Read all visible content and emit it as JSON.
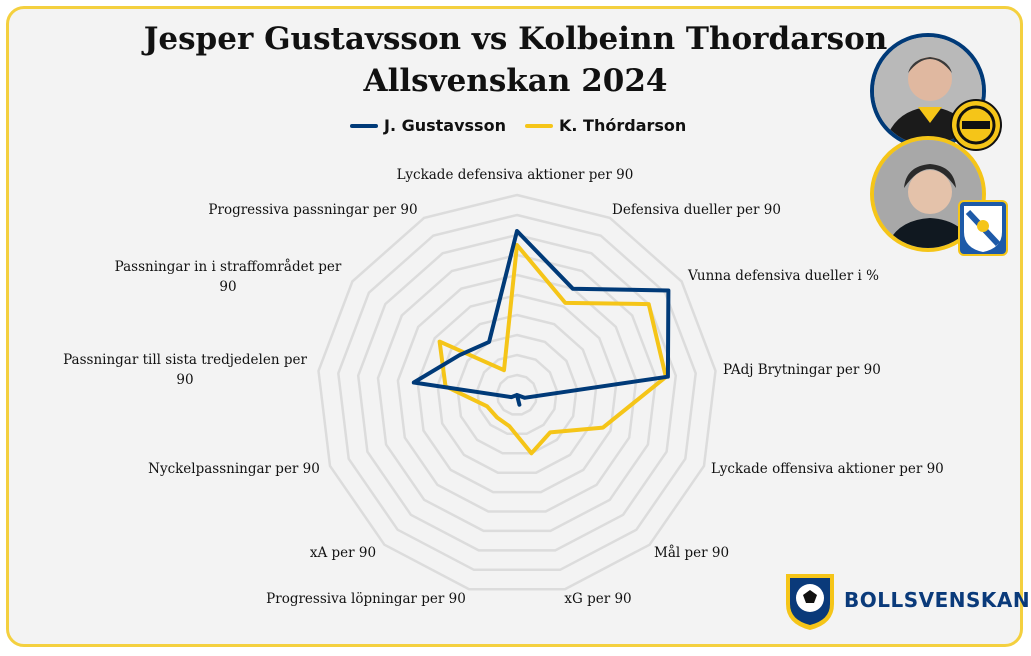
{
  "title_line1": "Jesper Gustavsson vs Kolbeinn Thordarson",
  "title_line2": "Allsvenskan 2024",
  "brand": "BOLLSVENSKAN.SE",
  "colors": {
    "gustavsson": "#003a78",
    "thordarson": "#f5c518",
    "grid": "#dcdcdc",
    "frame": "#f4d03f"
  },
  "chart_data": {
    "type": "radar",
    "title": "Jesper Gustavsson vs Kolbeinn Thordarson Allsvenskan 2024",
    "max": 10,
    "grid_rings": 10,
    "legend_position": "top-center",
    "categories": [
      "Lyckade defensiva aktioner per 90",
      "Defensiva dueller per 90",
      "Vunna defensiva dueller i %",
      "PAdj Brytningar per 90",
      "Lyckade offensiva aktioner per 90",
      "Mål per 90",
      "xG per 90",
      "Progressiva löpningar per 90",
      "xA per 90",
      "Nyckelpassningar per 90",
      "Passningar till sista tredjedelen per 90",
      "Passningar in i straffområdet per 90",
      "Progressiva passningar per 90"
    ],
    "series": [
      {
        "name": "J. Gustavsson",
        "values": [
          8.2,
          6.0,
          9.2,
          7.6,
          0.4,
          0.0,
          0.5,
          0.0,
          0.0,
          0.3,
          5.2,
          3.5,
          3.0
        ]
      },
      {
        "name": "K. Thórdarson",
        "values": [
          7.5,
          5.2,
          8.0,
          7.5,
          4.6,
          2.5,
          3.0,
          1.6,
          1.5,
          1.6,
          3.6,
          4.7,
          1.4
        ]
      }
    ]
  }
}
